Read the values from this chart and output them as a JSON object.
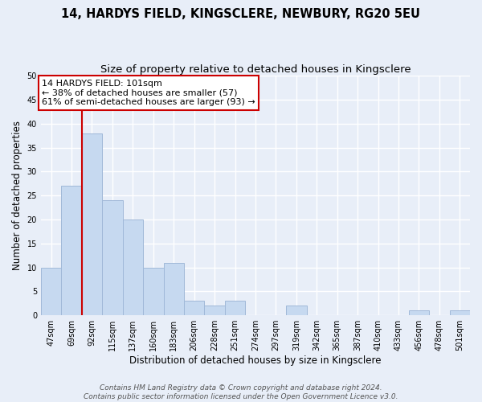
{
  "title": "14, HARDYS FIELD, KINGSCLERE, NEWBURY, RG20 5EU",
  "subtitle": "Size of property relative to detached houses in Kingsclere",
  "xlabel": "Distribution of detached houses by size in Kingsclere",
  "ylabel": "Number of detached properties",
  "bar_labels": [
    "47sqm",
    "69sqm",
    "92sqm",
    "115sqm",
    "137sqm",
    "160sqm",
    "183sqm",
    "206sqm",
    "228sqm",
    "251sqm",
    "274sqm",
    "297sqm",
    "319sqm",
    "342sqm",
    "365sqm",
    "387sqm",
    "410sqm",
    "433sqm",
    "456sqm",
    "478sqm",
    "501sqm"
  ],
  "bar_values": [
    10,
    27,
    38,
    24,
    20,
    10,
    11,
    3,
    2,
    3,
    0,
    0,
    2,
    0,
    0,
    0,
    0,
    0,
    1,
    0,
    1
  ],
  "bar_color": "#c6d9f0",
  "bar_edge_color": "#a0b8d8",
  "vline_color": "#cc0000",
  "ylim": [
    0,
    50
  ],
  "yticks": [
    0,
    5,
    10,
    15,
    20,
    25,
    30,
    35,
    40,
    45,
    50
  ],
  "annotation_line1": "14 HARDYS FIELD: 101sqm",
  "annotation_line2": "← 38% of detached houses are smaller (57)",
  "annotation_line3": "61% of semi-detached houses are larger (93) →",
  "annotation_box_color": "#ffffff",
  "annotation_box_edge": "#cc0000",
  "footnote": "Contains HM Land Registry data © Crown copyright and database right 2024.\nContains public sector information licensed under the Open Government Licence v3.0.",
  "background_color": "#e8eef8",
  "grid_color": "#ffffff",
  "title_fontsize": 10.5,
  "subtitle_fontsize": 9.5,
  "axis_label_fontsize": 8.5,
  "tick_fontsize": 7,
  "annotation_fontsize": 8,
  "footnote_fontsize": 6.5
}
